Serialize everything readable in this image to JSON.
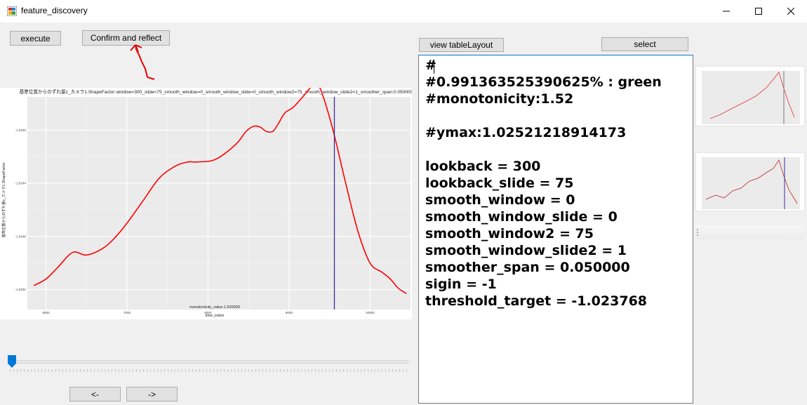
{
  "window": {
    "title": "feature_discovery",
    "controls": {
      "minimize": "—",
      "maximize": "☐",
      "close": "✕"
    }
  },
  "buttons": {
    "execute": "execute",
    "confirm": "Confirm and reflect",
    "view_table": "view tableLayout",
    "select": "select",
    "prev": "<-",
    "next": "->"
  },
  "annotation": {
    "color": "#e60000"
  },
  "slider": {
    "value": 0
  },
  "editor": {
    "lines": [
      "#",
      "#0.991363525390625% : green",
      "#monotonicity:1.52",
      "",
      "#ymax:1.02521218914173",
      "",
      "lookback = 300",
      "lookback_slide = 75",
      "smooth_window = 0",
      "smooth_window_slide = 0",
      "smooth_window2 = 75",
      "smooth_window_slide2 = 1",
      "smoother_span = 0.050000",
      "sigin = -1",
      "threshold_target = -1.023768"
    ]
  },
  "chart_data": {
    "type": "line",
    "title": "基準位置からのずれ量z_カメラ1.ShapeFactor window=300_slide=75_smooth_window=0_smooth_window_slide=0_smooth_window2=75_smooth_window_slide2=1_smoother_span:0.050000",
    "xlabel": "time_index",
    "ylabel": "基準位置からのずれ量z_カメラ1.ShapeFactor",
    "annotation": "monotonicity_value:1.520000",
    "xticks": [
      "9000",
      "7000",
      "8000",
      "9000",
      "10000"
    ],
    "yticks": [
      "-1.0240",
      "-1.0244",
      "-1.0248",
      "-1.0252"
    ],
    "xlim": [
      5770,
      10500
    ],
    "ylim": [
      -1.02535,
      -1.02375
    ],
    "vline_x": 9560,
    "series": [
      {
        "color": "#ff0000",
        "x": [
          5850,
          6000,
          6150,
          6330,
          6500,
          6700,
          6850,
          7000,
          7200,
          7400,
          7600,
          7750,
          7850,
          8050,
          8200,
          8370,
          8470,
          8570,
          8650,
          8720,
          8800,
          8870,
          8950,
          9050,
          9170,
          9250,
          9330,
          9380,
          9460,
          9560,
          9700,
          9850,
          10000,
          10150,
          10250,
          10350,
          10450
        ],
        "y": [
          -1.02517,
          -1.02512,
          -1.02503,
          -1.02492,
          -1.02494,
          -1.02489,
          -1.02481,
          -1.0247,
          -1.02453,
          -1.02436,
          -1.02427,
          -1.02424,
          -1.02424,
          -1.02423,
          -1.02418,
          -1.02409,
          -1.02401,
          -1.02397,
          -1.02398,
          -1.02401,
          -1.02401,
          -1.02395,
          -1.02387,
          -1.02383,
          -1.02375,
          -1.02369,
          -1.02364,
          -1.02368,
          -1.02382,
          -1.02404,
          -1.0244,
          -1.02476,
          -1.025,
          -1.02507,
          -1.02512,
          -1.02519,
          -1.02523
        ]
      }
    ]
  }
}
